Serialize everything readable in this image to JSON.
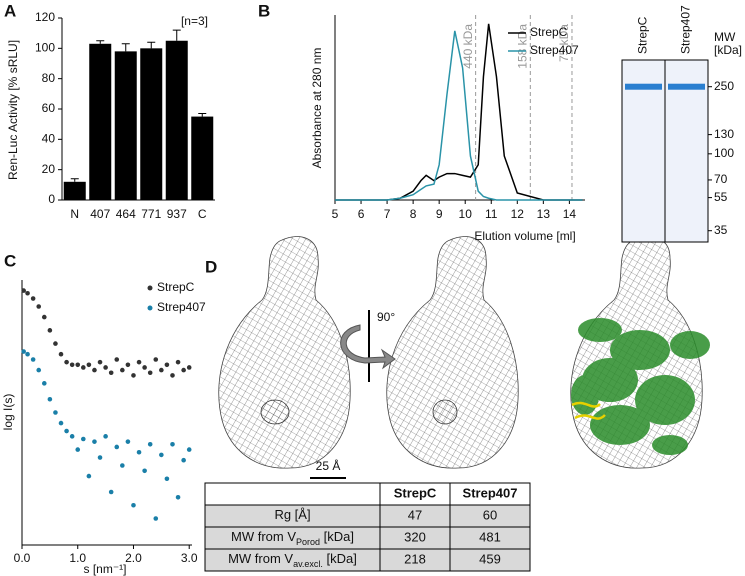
{
  "chart_data": [
    {
      "type": "bar",
      "label": "A",
      "ylabel": "Ren-Luc Activity [% sRLU]",
      "annotation": "[n=3]",
      "categories": [
        "N",
        "407",
        "464",
        "771",
        "937",
        "C"
      ],
      "values": [
        12,
        103,
        98,
        100,
        105,
        55
      ],
      "errors": [
        2,
        2,
        5,
        4,
        7,
        2
      ],
      "color": "#000000",
      "ylim": [
        0,
        120
      ],
      "yticks": [
        0,
        20,
        40,
        60,
        80,
        100,
        120
      ]
    },
    {
      "type": "line",
      "label": "B",
      "ylabel": "Absorbance at 280 nm",
      "xlabel": "Elution volume [ml]",
      "x": [
        5,
        6,
        7,
        7.5,
        8,
        8.3,
        8.5,
        8.8,
        9,
        9.3,
        9.6,
        9.9,
        10.2,
        10.5,
        10.7,
        10.9,
        11.2,
        11.5,
        12,
        13,
        14,
        14.5
      ],
      "series": [
        {
          "name": "StrepC",
          "color": "#000000",
          "values": [
            0,
            0,
            0,
            0.01,
            0.05,
            0.11,
            0.14,
            0.11,
            0.13,
            0.15,
            0.15,
            0.14,
            0.13,
            0.2,
            0.7,
            1.0,
            0.7,
            0.25,
            0.04,
            0,
            0,
            0
          ]
        },
        {
          "name": "Strep407",
          "color": "#2a93a8",
          "values": [
            0,
            0,
            0,
            0.01,
            0.03,
            0.06,
            0.08,
            0.09,
            0.2,
            0.6,
            0.96,
            0.75,
            0.25,
            0.05,
            0.02,
            0.01,
            0,
            0,
            0,
            0,
            0,
            0
          ]
        }
      ],
      "reference_lines": [
        {
          "x": 10.4,
          "label": "440 kDa"
        },
        {
          "x": 12.5,
          "label": "158 kDa"
        },
        {
          "x": 14.1,
          "label": "75 kDa"
        }
      ],
      "xlim": [
        5,
        14.6
      ],
      "xticks": [
        5,
        6,
        7,
        8,
        9,
        10,
        11,
        12,
        13,
        14
      ],
      "ylim": [
        0,
        1.05
      ]
    },
    {
      "type": "gel",
      "ylabel": [
        "MW",
        "[kDa]"
      ],
      "categories": [
        "StrepC",
        "Strep407"
      ],
      "values": [
        250,
        250
      ],
      "color": "#2a7fd0",
      "log_scale": true,
      "ylim": [
        30,
        360
      ],
      "yticks": [
        250,
        130,
        100,
        70,
        55,
        35
      ]
    },
    {
      "type": "scatter",
      "label": "C",
      "ylabel": "log I(s)",
      "xlabel": "s [nm⁻¹]",
      "x": [
        0.03,
        0.1,
        0.2,
        0.3,
        0.4,
        0.5,
        0.6,
        0.7,
        0.8,
        0.9,
        1.0,
        1.1,
        1.2,
        1.3,
        1.4,
        1.5,
        1.6,
        1.7,
        1.8,
        1.9,
        2.0,
        2.1,
        2.2,
        2.3,
        2.4,
        2.5,
        2.6,
        2.7,
        2.8,
        2.9,
        3.0
      ],
      "series": [
        {
          "name": "StrepC",
          "color": "#333333",
          "values": [
            9.6,
            9.5,
            9.3,
            9.0,
            8.6,
            8.1,
            7.6,
            7.2,
            6.9,
            6.8,
            6.8,
            6.7,
            6.8,
            6.6,
            6.9,
            6.7,
            6.5,
            7.0,
            6.6,
            6.8,
            6.4,
            6.9,
            6.7,
            6.5,
            7.0,
            6.6,
            6.8,
            6.4,
            6.9,
            6.6,
            6.7
          ]
        },
        {
          "name": "Strep407",
          "color": "#1a7fa8",
          "values": [
            7.3,
            7.2,
            7.0,
            6.6,
            6.1,
            5.5,
            5.0,
            4.6,
            4.3,
            4.1,
            3.6,
            4.0,
            2.6,
            3.9,
            3.3,
            4.1,
            2.0,
            3.7,
            3.0,
            3.9,
            1.5,
            3.5,
            2.8,
            3.8,
            1.0,
            3.4,
            2.5,
            3.8,
            1.8,
            3.2,
            3.6
          ]
        }
      ],
      "xlim": [
        0,
        3.05
      ],
      "ylim": [
        0,
        10
      ],
      "xticks": [
        {
          "value": 0,
          "label": "0.0"
        },
        {
          "value": 1,
          "label": "1.0"
        },
        {
          "value": 2,
          "label": "2.0"
        },
        {
          "value": 3,
          "label": "3.0"
        }
      ]
    }
  ],
  "panel_d": {
    "label": "D",
    "rotation": "90°",
    "scale_bar": "25 Å",
    "table": {
      "header": [
        "StrepC",
        "Strep407"
      ],
      "rows": [
        {
          "label": {
            "text": "Rg [Å]"
          },
          "values": [
            47,
            60
          ]
        },
        {
          "label": {
            "text": "MW from V",
            "sub": "Porod",
            "unit": " [kDa]"
          },
          "values": [
            320,
            481
          ]
        },
        {
          "label": {
            "text": "MW from V",
            "sub": "av.excl.",
            "unit": " [kDa]"
          },
          "values": [
            218,
            459
          ]
        }
      ]
    }
  }
}
